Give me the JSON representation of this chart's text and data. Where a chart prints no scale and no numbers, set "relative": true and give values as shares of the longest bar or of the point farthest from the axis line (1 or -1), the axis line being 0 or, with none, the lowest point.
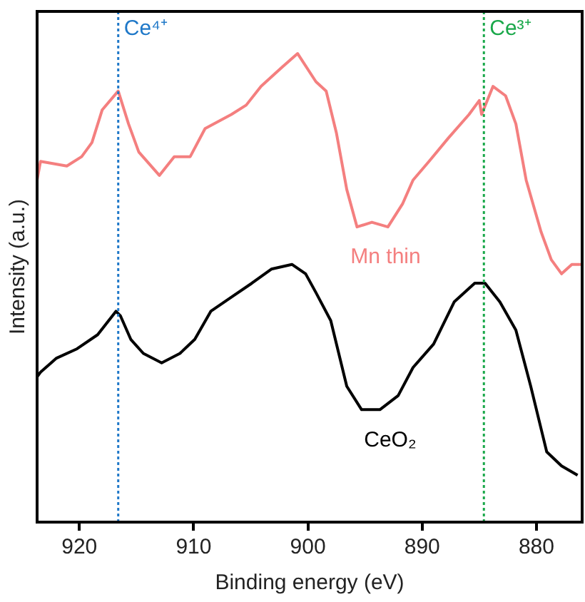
{
  "chart_data": {
    "type": "line",
    "xlabel": "Binding energy (eV)",
    "ylabel": "Intensity (a.u.)",
    "relative": true,
    "tick_labels": "x",
    "grid": false,
    "marker": "none",
    "xlim": [
      923.7,
      876
    ],
    "xticks": [
      920,
      910,
      900,
      890,
      880
    ],
    "series": [
      {
        "name": "Mn thin",
        "color": "#f47f7f",
        "x": [
          923.7,
          923.4,
          921.1,
          919.8,
          918.9,
          918.0,
          916.6,
          915.7,
          914.8,
          913.0,
          911.7,
          910.3,
          909.0,
          906.7,
          905.4,
          904.1,
          902.3,
          900.9,
          899.3,
          898.4,
          897.5,
          896.6,
          895.7,
          894.4,
          893.0,
          891.7,
          890.8,
          889.4,
          887.7,
          885.9,
          885.0,
          884.8,
          883.8,
          882.7,
          881.8,
          880.9,
          879.6,
          878.7,
          877.8,
          876.9,
          876.0
        ],
        "values": [
          0.73,
          0.77,
          0.76,
          0.78,
          0.81,
          0.88,
          0.92,
          0.85,
          0.79,
          0.74,
          0.78,
          0.78,
          0.84,
          0.87,
          0.89,
          0.93,
          0.97,
          1.0,
          0.94,
          0.92,
          0.83,
          0.71,
          0.63,
          0.64,
          0.63,
          0.68,
          0.73,
          0.77,
          0.82,
          0.87,
          0.9,
          0.87,
          0.93,
          0.91,
          0.85,
          0.73,
          0.62,
          0.56,
          0.53,
          0.55,
          0.55
        ]
      },
      {
        "name": "CeO₂",
        "color": "#000000",
        "x": [
          923.7,
          923.4,
          922.0,
          920.2,
          918.4,
          916.8,
          916.4,
          915.5,
          914.4,
          912.8,
          911.2,
          909.9,
          908.5,
          906.7,
          904.9,
          903.2,
          901.4,
          900.2,
          899.3,
          898.0,
          896.6,
          895.3,
          893.7,
          892.1,
          890.8,
          889.0,
          887.2,
          885.4,
          884.5,
          883.2,
          881.8,
          880.5,
          879.1,
          877.8,
          876.4
        ],
        "values": [
          0.31,
          0.32,
          0.35,
          0.37,
          0.4,
          0.45,
          0.44,
          0.39,
          0.36,
          0.34,
          0.36,
          0.39,
          0.45,
          0.48,
          0.51,
          0.54,
          0.55,
          0.53,
          0.49,
          0.43,
          0.29,
          0.24,
          0.24,
          0.27,
          0.33,
          0.38,
          0.47,
          0.51,
          0.51,
          0.47,
          0.41,
          0.29,
          0.15,
          0.12,
          0.1
        ]
      }
    ],
    "ref_lines": [
      {
        "axis": "x",
        "value": 916.6,
        "label": "Ce⁴⁺",
        "color": "#1f78c8",
        "line_style": "dotted"
      },
      {
        "axis": "x",
        "value": 884.6,
        "label": "Ce³⁺",
        "color": "#1aa84a",
        "line_style": "dotted"
      }
    ]
  }
}
